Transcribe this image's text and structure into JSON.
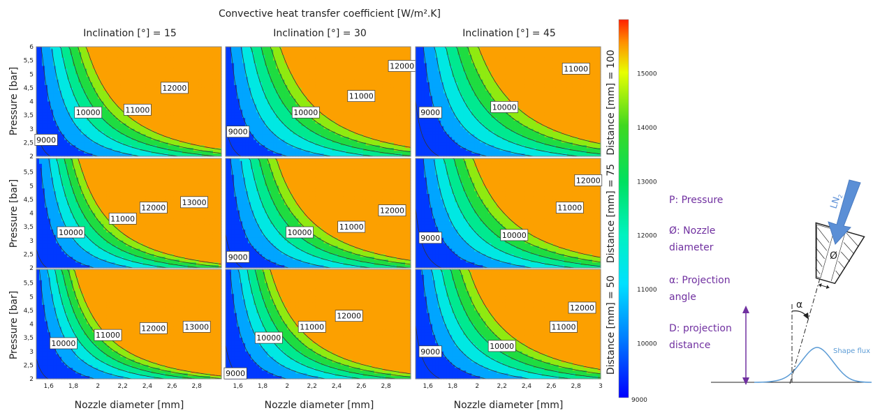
{
  "chart_data": {
    "type": "heatmap",
    "subtype": "contour-grid",
    "title": "Convective heat transfer coefficient [W/m².K]",
    "xlabel": "Nozzle diameter [mm]",
    "ylabel": "Pressure [bar]",
    "col_facet_labels": [
      "Inclination [°] = 15",
      "Inclination [°] = 30",
      "Inclination [°] = 45"
    ],
    "row_facet_labels": [
      "Distance [mm] = 100",
      "Distance [mm] = 75",
      "Distance [mm] = 50"
    ],
    "inclinations": [
      15,
      30,
      45
    ],
    "distances": [
      100,
      75,
      50
    ],
    "x_range": [
      1.5,
      3.0
    ],
    "y_range": [
      2,
      6
    ],
    "x_ticks": [
      "1,6",
      "1,8",
      "2",
      "2,2",
      "2,4",
      "2,6",
      "2,8"
    ],
    "x_ticks_last": [
      "1,6",
      "1,8",
      "2",
      "2,2",
      "2,4",
      "2,6",
      "2,8",
      "3"
    ],
    "y_ticks_top": [
      "2",
      "2,5",
      "3",
      "3,5",
      "4",
      "4,5",
      "5",
      "5,5",
      "6"
    ],
    "y_ticks": [
      "2",
      "2,5",
      "3",
      "3,5",
      "4",
      "4,5",
      "5",
      "5,5"
    ],
    "contour_levels": [
      9000,
      10000,
      11000,
      12000,
      13000,
      14000,
      15000
    ],
    "colorbar": {
      "min": 9000,
      "max": 16000,
      "tick_values": [
        9000,
        10000,
        11000,
        12000,
        13000,
        14000,
        15000
      ],
      "tick_labels": [
        "9000",
        "10000",
        "11000",
        "12000",
        "13000",
        "14000",
        "15000"
      ]
    },
    "panels": [
      {
        "row": 0,
        "col": 0,
        "base": 8600,
        "kx": 1.2,
        "ky": 0.72,
        "c": 5000,
        "labels": [
          {
            "text": "9000",
            "x": 1.58,
            "y": 2.6
          },
          {
            "text": "10000",
            "x": 1.92,
            "y": 3.6
          },
          {
            "text": "11000",
            "x": 2.32,
            "y": 3.7
          },
          {
            "text": "12000",
            "x": 2.62,
            "y": 4.5
          }
        ]
      },
      {
        "row": 0,
        "col": 1,
        "base": 8500,
        "kx": 1.1,
        "ky": 0.66,
        "c": 4800,
        "labels": [
          {
            "text": "9000",
            "x": 1.6,
            "y": 2.9
          },
          {
            "text": "10000",
            "x": 2.15,
            "y": 3.6
          },
          {
            "text": "11000",
            "x": 2.6,
            "y": 4.2
          },
          {
            "text": "12000",
            "x": 2.93,
            "y": 5.3
          }
        ]
      },
      {
        "row": 0,
        "col": 2,
        "base": 8300,
        "kx": 1.05,
        "ky": 0.62,
        "c": 4500,
        "labels": [
          {
            "text": "9000",
            "x": 1.62,
            "y": 3.6
          },
          {
            "text": "10000",
            "x": 2.22,
            "y": 3.8
          },
          {
            "text": "11000",
            "x": 2.8,
            "y": 5.2
          }
        ]
      },
      {
        "row": 1,
        "col": 0,
        "base": 8700,
        "kx": 1.3,
        "ky": 0.8,
        "c": 5600,
        "labels": [
          {
            "text": "10000",
            "x": 1.78,
            "y": 3.3
          },
          {
            "text": "11000",
            "x": 2.2,
            "y": 3.8
          },
          {
            "text": "12000",
            "x": 2.45,
            "y": 4.2
          },
          {
            "text": "13000",
            "x": 2.78,
            "y": 4.4
          }
        ]
      },
      {
        "row": 1,
        "col": 1,
        "base": 8500,
        "kx": 1.15,
        "ky": 0.7,
        "c": 5000,
        "labels": [
          {
            "text": "9000",
            "x": 1.6,
            "y": 2.4
          },
          {
            "text": "10000",
            "x": 2.1,
            "y": 3.3
          },
          {
            "text": "11000",
            "x": 2.52,
            "y": 3.5
          },
          {
            "text": "12000",
            "x": 2.85,
            "y": 4.1
          }
        ]
      },
      {
        "row": 1,
        "col": 2,
        "base": 8300,
        "kx": 1.1,
        "ky": 0.66,
        "c": 4700,
        "labels": [
          {
            "text": "9000",
            "x": 1.62,
            "y": 3.1
          },
          {
            "text": "10000",
            "x": 2.3,
            "y": 3.2
          },
          {
            "text": "11000",
            "x": 2.75,
            "y": 4.2
          },
          {
            "text": "12000",
            "x": 2.9,
            "y": 5.2
          }
        ]
      },
      {
        "row": 2,
        "col": 0,
        "base": 8700,
        "kx": 1.35,
        "ky": 0.85,
        "c": 6000,
        "labels": [
          {
            "text": "10000",
            "x": 1.72,
            "y": 3.3
          },
          {
            "text": "11000",
            "x": 2.08,
            "y": 3.6
          },
          {
            "text": "12000",
            "x": 2.45,
            "y": 3.85
          },
          {
            "text": "13000",
            "x": 2.8,
            "y": 3.9
          }
        ]
      },
      {
        "row": 2,
        "col": 1,
        "base": 8500,
        "kx": 1.2,
        "ky": 0.74,
        "c": 5500,
        "labels": [
          {
            "text": "9000",
            "x": 1.58,
            "y": 2.2
          },
          {
            "text": "10000",
            "x": 1.85,
            "y": 3.5
          },
          {
            "text": "11000",
            "x": 2.2,
            "y": 3.9
          },
          {
            "text": "12000",
            "x": 2.5,
            "y": 4.3
          }
        ]
      },
      {
        "row": 2,
        "col": 2,
        "base": 8300,
        "kx": 1.1,
        "ky": 0.68,
        "c": 4900,
        "labels": [
          {
            "text": "9000",
            "x": 1.62,
            "y": 3.0
          },
          {
            "text": "10000",
            "x": 2.2,
            "y": 3.2
          },
          {
            "text": "11000",
            "x": 2.7,
            "y": 3.9
          },
          {
            "text": "12000",
            "x": 2.85,
            "y": 4.6
          }
        ]
      }
    ]
  },
  "legend": {
    "items": [
      "P: Pressure",
      "Ø: Nozzle diameter",
      "α: Projection angle",
      "D: projection distance"
    ],
    "color": "#7030a0"
  },
  "schematic": {
    "gas_label": "LN",
    "gas_subscript": "2",
    "nozzle_symbol": "Ø",
    "angle_symbol": "α",
    "flux_label": "Shape flux",
    "arrow_color": "#5b8fd6",
    "flux_color": "#5b9bd5"
  }
}
